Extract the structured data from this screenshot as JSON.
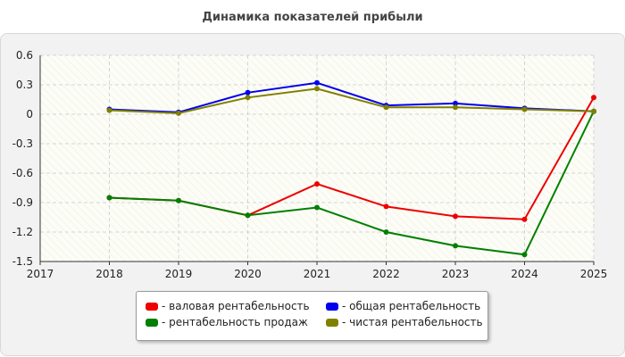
{
  "chart_data": {
    "type": "line",
    "title": "Динамика показателей прибыли",
    "x_ticks": [
      "2017",
      "2018",
      "2019",
      "2020",
      "2021",
      "2022",
      "2023",
      "2024",
      "2025"
    ],
    "xlim": [
      2017,
      2025
    ],
    "ylim": [
      -1.5,
      0.6
    ],
    "y_ticks": [
      "0.6",
      "0.3",
      "0",
      "-0.3",
      "-0.6",
      "-0.9",
      "-1.2",
      "-1.5"
    ],
    "grid": true,
    "legend_position": "bottom-center",
    "series": [
      {
        "name": "- валовая рентабельность",
        "color": "#ee0000",
        "x": [
          2018,
          2019,
          2020,
          2021,
          2022,
          2023,
          2024,
          2025
        ],
        "y": [
          -0.85,
          -0.88,
          -1.03,
          -0.71,
          -0.94,
          -1.04,
          -1.07,
          0.17
        ]
      },
      {
        "name": "- общая рентабельность",
        "color": "#0000ee",
        "x": [
          2018,
          2019,
          2020,
          2021,
          2022,
          2023,
          2024,
          2025
        ],
        "y": [
          0.05,
          0.02,
          0.22,
          0.32,
          0.09,
          0.11,
          0.06,
          0.03
        ]
      },
      {
        "name": "- рентабельность продаж",
        "color": "#008000",
        "x": [
          2018,
          2019,
          2020,
          2021,
          2022,
          2023,
          2024,
          2025
        ],
        "y": [
          -0.85,
          -0.88,
          -1.03,
          -0.95,
          -1.2,
          -1.34,
          -1.43,
          0.03
        ]
      },
      {
        "name": "- чистая рентабельность",
        "color": "#808000",
        "x": [
          2018,
          2019,
          2020,
          2021,
          2022,
          2023,
          2024,
          2025
        ],
        "y": [
          0.04,
          0.01,
          0.17,
          0.26,
          0.07,
          0.07,
          0.05,
          0.03
        ]
      }
    ]
  }
}
